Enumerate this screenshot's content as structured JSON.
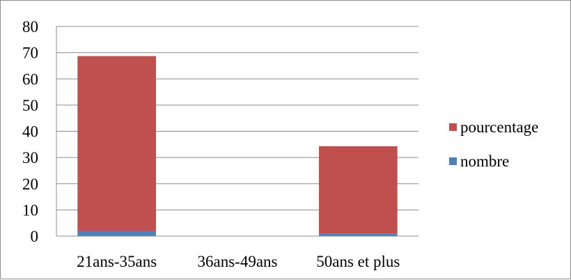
{
  "chart_data": {
    "type": "bar",
    "stacked": true,
    "categories": [
      "21ans-35ans",
      "36ans-49ans",
      "50ans et plus"
    ],
    "series": [
      {
        "name": "nombre",
        "values": [
          2,
          0,
          1
        ],
        "color": "#4f81bd"
      },
      {
        "name": "pourcentage",
        "values": [
          66.7,
          0,
          33.3
        ],
        "color": "#c0504d"
      }
    ],
    "ylim": [
      0,
      80
    ],
    "yticks": [
      "0",
      "10",
      "20",
      "30",
      "40",
      "50",
      "60",
      "70",
      "80"
    ],
    "grid": true,
    "legend": "right"
  }
}
